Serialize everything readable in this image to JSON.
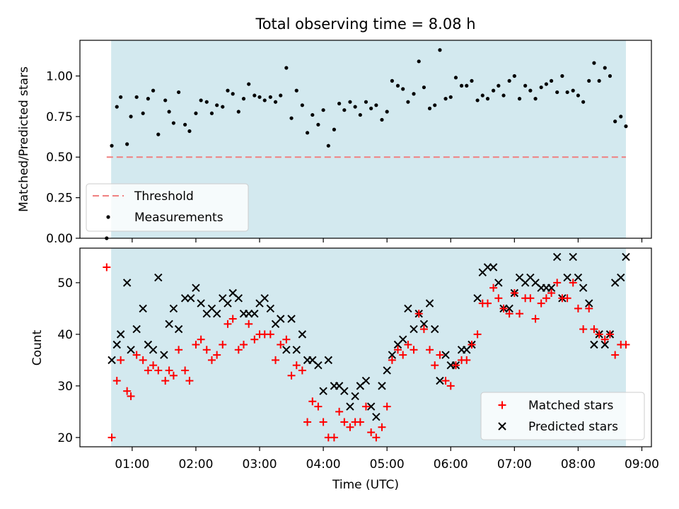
{
  "figure": {
    "title": "Total observing time = 8.08 h"
  },
  "colors": {
    "shade": "#d3e9ef",
    "threshold": "#f08080",
    "measurement": "#000000",
    "matched": "#ff0000",
    "predicted": "#000000"
  },
  "chart_data": [
    {
      "type": "scatter",
      "title": "Total observing time = 8.08 h",
      "xlabel": "",
      "ylabel": "Matched/Predicted stars",
      "ylim": [
        0,
        1.22
      ],
      "xlim": [
        0.18,
        9.15
      ],
      "yticks": [
        "0.00",
        "0.25",
        "0.50",
        "0.75",
        "1.00"
      ],
      "shaded_span": [
        0.67,
        8.75
      ],
      "threshold": {
        "name": "Threshold",
        "y": 0.5,
        "x": [
          0.6,
          8.75
        ]
      },
      "legend": {
        "position": "lower-left",
        "entries": [
          "Threshold",
          "Measurements"
        ]
      },
      "series": [
        {
          "name": "Measurements",
          "x": [
            0.6,
            0.68,
            0.76,
            0.82,
            0.92,
            0.98,
            1.07,
            1.17,
            1.25,
            1.33,
            1.41,
            1.52,
            1.58,
            1.65,
            1.73,
            1.83,
            1.9,
            2.0,
            2.08,
            2.17,
            2.25,
            2.33,
            2.42,
            2.5,
            2.58,
            2.67,
            2.75,
            2.83,
            2.92,
            3.0,
            3.08,
            3.17,
            3.25,
            3.33,
            3.42,
            3.5,
            3.58,
            3.67,
            3.75,
            3.83,
            3.92,
            4.0,
            4.08,
            4.17,
            4.25,
            4.33,
            4.42,
            4.5,
            4.58,
            4.67,
            4.75,
            4.83,
            4.92,
            5.0,
            5.08,
            5.17,
            5.25,
            5.33,
            5.42,
            5.5,
            5.58,
            5.67,
            5.75,
            5.83,
            5.92,
            6.0,
            6.08,
            6.17,
            6.25,
            6.33,
            6.42,
            6.5,
            6.58,
            6.67,
            6.75,
            6.83,
            6.92,
            7.0,
            7.08,
            7.17,
            7.25,
            7.33,
            7.42,
            7.5,
            7.58,
            7.67,
            7.75,
            7.83,
            7.92,
            8.0,
            8.08,
            8.17,
            8.25,
            8.33,
            8.42,
            8.5,
            8.58,
            8.67,
            8.75
          ],
          "y": [
            0.0,
            0.57,
            0.81,
            0.87,
            0.58,
            0.75,
            0.87,
            0.77,
            0.86,
            0.91,
            0.64,
            0.85,
            0.78,
            0.71,
            0.9,
            0.7,
            0.66,
            0.77,
            0.85,
            0.84,
            0.77,
            0.82,
            0.81,
            0.91,
            0.89,
            0.78,
            0.86,
            0.95,
            0.88,
            0.87,
            0.85,
            0.87,
            0.84,
            0.88,
            1.05,
            0.74,
            0.91,
            0.82,
            0.65,
            0.76,
            0.7,
            0.79,
            0.57,
            0.67,
            0.83,
            0.79,
            0.84,
            0.81,
            0.76,
            0.84,
            0.8,
            0.82,
            0.73,
            0.78,
            0.97,
            0.94,
            0.92,
            0.84,
            0.89,
            1.09,
            0.93,
            0.8,
            0.82,
            1.16,
            0.86,
            0.87,
            0.99,
            0.94,
            0.94,
            0.97,
            0.85,
            0.88,
            0.86,
            0.91,
            0.94,
            0.88,
            0.97,
            1.0,
            0.86,
            0.94,
            0.91,
            0.86,
            0.93,
            0.95,
            0.97,
            0.9,
            1.0,
            0.9,
            0.91,
            0.88,
            0.84,
            0.97,
            1.08,
            0.97,
            1.05,
            1.0,
            0.72,
            0.75,
            0.69
          ]
        }
      ]
    },
    {
      "type": "scatter",
      "xlabel": "Time (UTC)",
      "ylabel": "Count",
      "ylim": [
        18.2,
        56.7
      ],
      "xlim": [
        0.18,
        9.15
      ],
      "yticks": [
        "20",
        "30",
        "40",
        "50"
      ],
      "xticks": [
        "01:00",
        "02:00",
        "03:00",
        "04:00",
        "05:00",
        "06:00",
        "07:00",
        "08:00",
        "09:00"
      ],
      "shaded_span": [
        0.67,
        8.75
      ],
      "legend": {
        "position": "lower-right",
        "entries": [
          "Matched stars",
          "Predicted stars"
        ]
      },
      "series": [
        {
          "name": "Matched stars",
          "marker": "plus",
          "x": [
            0.6,
            0.68,
            0.76,
            0.82,
            0.92,
            0.98,
            1.07,
            1.17,
            1.25,
            1.33,
            1.41,
            1.52,
            1.58,
            1.65,
            1.73,
            1.83,
            1.9,
            2.0,
            2.08,
            2.17,
            2.25,
            2.33,
            2.42,
            2.5,
            2.58,
            2.67,
            2.75,
            2.83,
            2.92,
            3.0,
            3.08,
            3.17,
            3.25,
            3.33,
            3.42,
            3.5,
            3.58,
            3.67,
            3.75,
            3.83,
            3.92,
            4.0,
            4.08,
            4.17,
            4.25,
            4.33,
            4.42,
            4.5,
            4.58,
            4.67,
            4.75,
            4.83,
            4.92,
            5.0,
            5.08,
            5.17,
            5.25,
            5.33,
            5.42,
            5.5,
            5.58,
            5.67,
            5.75,
            5.83,
            5.92,
            6.0,
            6.08,
            6.17,
            6.25,
            6.33,
            6.42,
            6.5,
            6.58,
            6.67,
            6.75,
            6.83,
            6.92,
            7.0,
            7.08,
            7.17,
            7.25,
            7.33,
            7.42,
            7.5,
            7.58,
            7.67,
            7.75,
            7.83,
            7.92,
            8.0,
            8.08,
            8.17,
            8.25,
            8.33,
            8.42,
            8.5,
            8.58,
            8.67,
            8.75
          ],
          "y": [
            53,
            20,
            31,
            35,
            29,
            28,
            36,
            35,
            33,
            34,
            33,
            31,
            33,
            32,
            37,
            33,
            31,
            38,
            39,
            37,
            35,
            36,
            38,
            42,
            43,
            37,
            38,
            42,
            39,
            40,
            40,
            40,
            35,
            38,
            39,
            32,
            34,
            33,
            23,
            27,
            26,
            23,
            20,
            20,
            25,
            23,
            22,
            23,
            23,
            26,
            21,
            20,
            22,
            26,
            35,
            37,
            36,
            38,
            37,
            44,
            41,
            37,
            34,
            36,
            31,
            30,
            34,
            35,
            35,
            38,
            40,
            46,
            46,
            49,
            47,
            45,
            44,
            48,
            44,
            47,
            47,
            43,
            46,
            47,
            48,
            50,
            47,
            47,
            50,
            45,
            41,
            45,
            41,
            40,
            39,
            40,
            36,
            38,
            38
          ]
        },
        {
          "name": "Predicted stars",
          "marker": "x",
          "x": [
            0.68,
            0.76,
            0.82,
            0.92,
            0.98,
            1.07,
            1.17,
            1.25,
            1.33,
            1.41,
            1.5,
            1.58,
            1.65,
            1.73,
            1.83,
            1.92,
            2.0,
            2.08,
            2.17,
            2.25,
            2.33,
            2.42,
            2.5,
            2.58,
            2.67,
            2.75,
            2.83,
            2.92,
            3.0,
            3.08,
            3.17,
            3.25,
            3.33,
            3.42,
            3.5,
            3.58,
            3.67,
            3.75,
            3.83,
            3.92,
            4.0,
            4.08,
            4.17,
            4.25,
            4.33,
            4.42,
            4.5,
            4.58,
            4.67,
            4.75,
            4.83,
            4.92,
            5.0,
            5.08,
            5.17,
            5.25,
            5.33,
            5.42,
            5.5,
            5.58,
            5.67,
            5.75,
            5.83,
            5.92,
            6.0,
            6.08,
            6.17,
            6.25,
            6.33,
            6.42,
            6.5,
            6.58,
            6.67,
            6.75,
            6.83,
            6.92,
            7.0,
            7.08,
            7.17,
            7.25,
            7.33,
            7.42,
            7.5,
            7.58,
            7.67,
            7.75,
            7.83,
            7.92,
            8.0,
            8.08,
            8.17,
            8.25,
            8.33,
            8.42,
            8.5,
            8.58,
            8.67,
            8.75
          ],
          "y": [
            35,
            38,
            40,
            50,
            37,
            41,
            45,
            38,
            37,
            51,
            36,
            42,
            45,
            41,
            47,
            47,
            49,
            46,
            44,
            45,
            44,
            47,
            46,
            48,
            47,
            44,
            44,
            44,
            46,
            47,
            45,
            42,
            43,
            37,
            43,
            37,
            40,
            35,
            35,
            34,
            29,
            35,
            30,
            30,
            29,
            26,
            28,
            30,
            31,
            26,
            24,
            30,
            33,
            36,
            38,
            39,
            45,
            41,
            44,
            42,
            46,
            41,
            31,
            36,
            34,
            34,
            37,
            37,
            38,
            47,
            52,
            53,
            53,
            50,
            45,
            45,
            48,
            51,
            50,
            51,
            50,
            49,
            49,
            49,
            55,
            47,
            51,
            55,
            51,
            49,
            46,
            38,
            40,
            38,
            40,
            50,
            51,
            55
          ]
        }
      ]
    }
  ]
}
